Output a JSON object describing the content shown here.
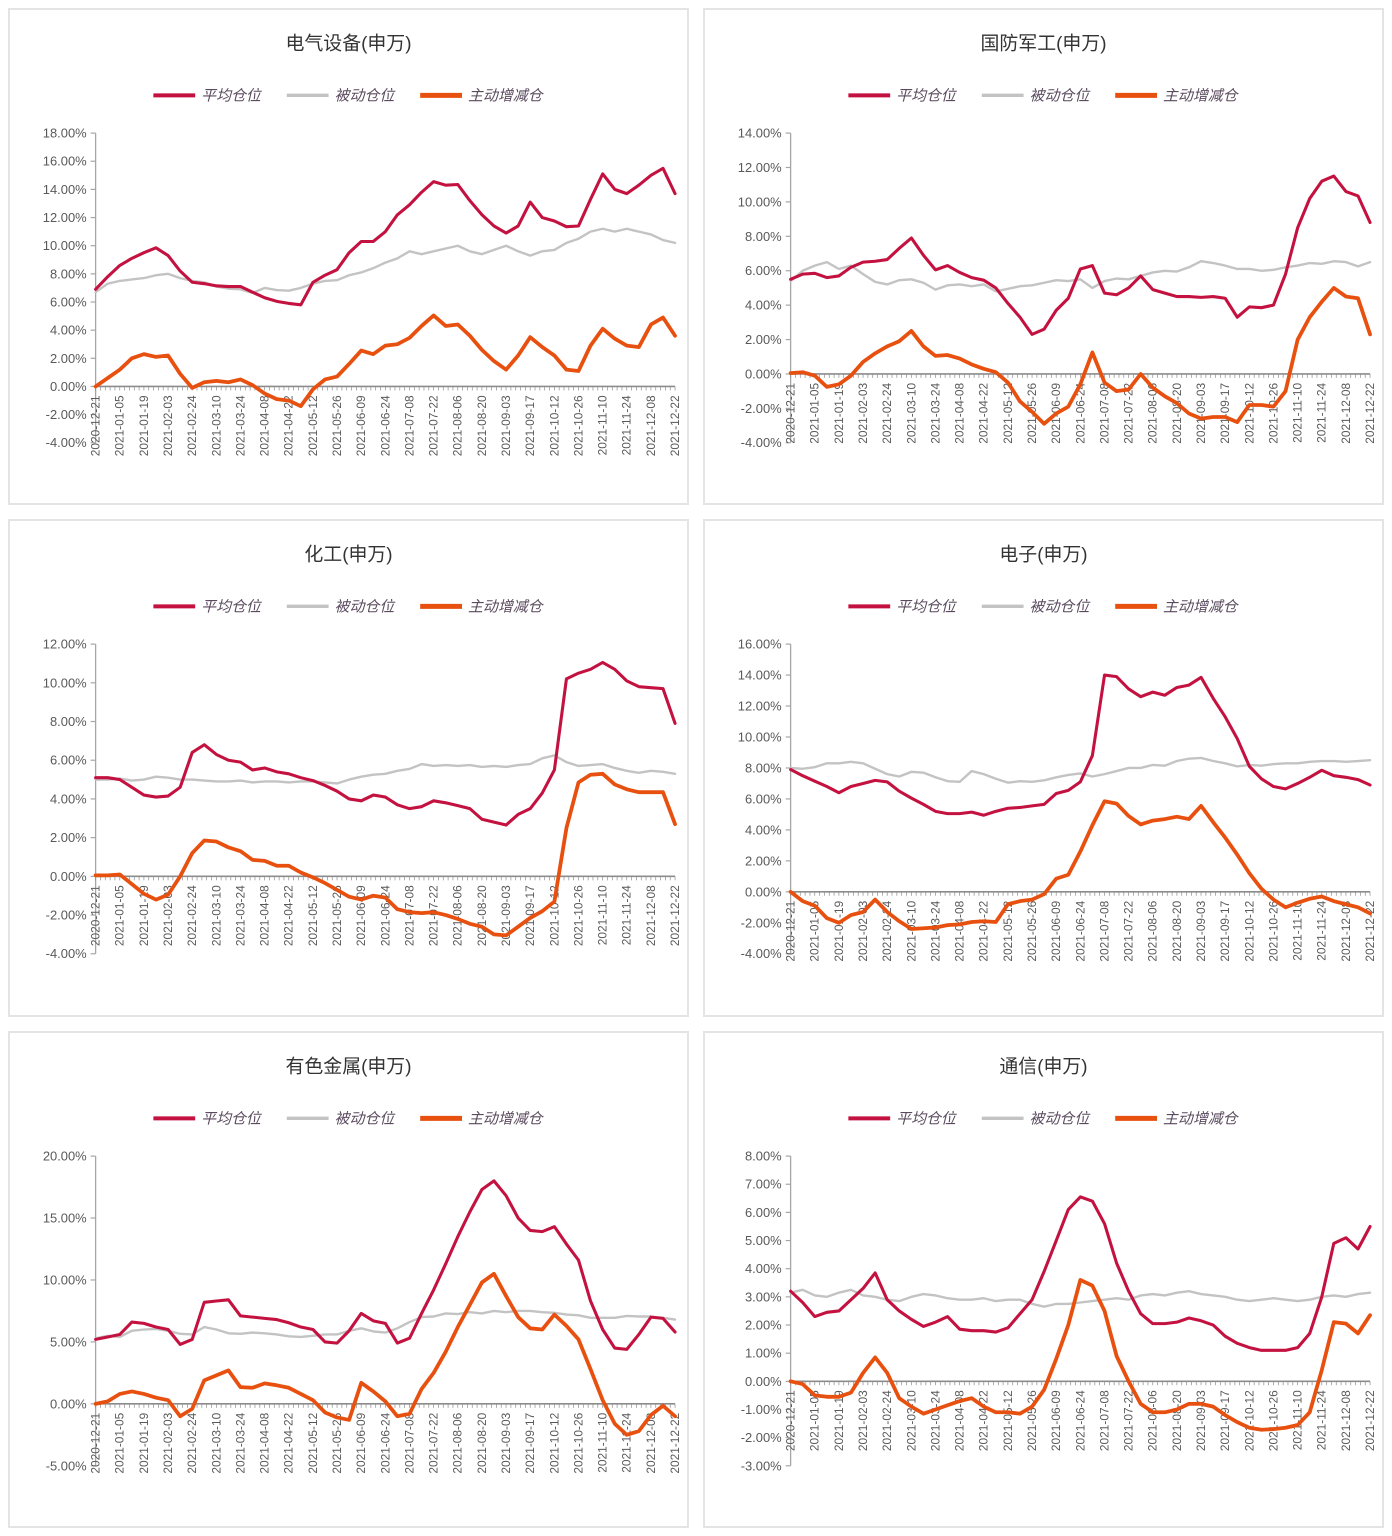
{
  "page": {
    "colors": {
      "avg": "#C41240",
      "passive": "#C3C3C3",
      "active": "#E8500F",
      "axis": "#8C8C8C",
      "grid_axis": "#A6A6A6",
      "tick_text": "#595959",
      "title_text": "#333333",
      "legend_text": "#5A4A5E",
      "panel_border": "#E4E4E4"
    }
  },
  "series_meta": [
    {
      "key": "avg",
      "label": "平均仓位"
    },
    {
      "key": "passive",
      "label": "被动仓位"
    },
    {
      "key": "active",
      "label": "主动增减仓"
    }
  ],
  "x_labels": [
    "2020-12-21",
    "2021-01-05",
    "2021-01-19",
    "2021-02-03",
    "2021-02-24",
    "2021-03-10",
    "2021-03-24",
    "2021-04-08",
    "2021-04-22",
    "2021-05-12",
    "2021-05-26",
    "2021-06-09",
    "2021-06-24",
    "2021-07-08",
    "2021-07-22",
    "2021-08-06",
    "2021-08-20",
    "2021-09-03",
    "2021-09-17",
    "2021-10-12",
    "2021-10-26",
    "2021-11-10",
    "2021-11-24",
    "2021-12-08",
    "2021-12-22"
  ],
  "chart_data": [
    {
      "type": "line",
      "id": "electrical-equipment",
      "title": "电气设备(申万)",
      "ylim": [
        -4,
        18
      ],
      "ystep": 2,
      "y_tick_labels": [
        "18.00%",
        "16.00%",
        "14.00%",
        "12.00%",
        "10.00%",
        "8.00%",
        "6.00%",
        "4.00%",
        "2.00%",
        "0.00%",
        "-2.00%",
        "-4.00%"
      ],
      "series": {
        "avg": [
          6.9,
          7.8,
          8.6,
          9.1,
          9.5,
          9.85,
          9.3,
          8.2,
          7.4,
          7.3,
          7.15,
          7.1,
          7.1,
          6.7,
          6.3,
          6.05,
          5.9,
          5.8,
          7.4,
          7.9,
          8.3,
          9.5,
          10.3,
          10.3,
          11.0,
          12.2,
          12.9,
          13.8,
          14.55,
          14.3,
          14.35,
          13.2,
          12.2,
          11.4,
          10.9,
          11.4,
          13.1,
          12.0,
          11.75,
          11.35,
          11.4,
          13.3,
          15.1,
          14.0,
          13.7,
          14.3,
          15.0,
          15.5,
          13.7
        ],
        "passive": [
          6.7,
          7.3,
          7.5,
          7.6,
          7.7,
          7.9,
          8.0,
          7.7,
          7.5,
          7.4,
          7.1,
          6.95,
          6.9,
          6.65,
          7.0,
          6.85,
          6.8,
          7.0,
          7.3,
          7.5,
          7.55,
          7.9,
          8.1,
          8.4,
          8.8,
          9.1,
          9.6,
          9.4,
          9.6,
          9.8,
          10.0,
          9.6,
          9.4,
          9.7,
          10.0,
          9.6,
          9.3,
          9.6,
          9.7,
          10.2,
          10.5,
          11.0,
          11.2,
          11.0,
          11.2,
          11.0,
          10.8,
          10.4,
          10.2
        ],
        "active": [
          0.0,
          0.6,
          1.2,
          2.0,
          2.3,
          2.1,
          2.2,
          0.9,
          -0.1,
          0.3,
          0.4,
          0.3,
          0.5,
          0.1,
          -0.5,
          -0.9,
          -1.0,
          -1.4,
          -0.2,
          0.5,
          0.7,
          1.6,
          2.55,
          2.3,
          2.9,
          3.0,
          3.45,
          4.3,
          5.05,
          4.3,
          4.4,
          3.6,
          2.6,
          1.8,
          1.2,
          2.2,
          3.5,
          2.8,
          2.2,
          1.2,
          1.1,
          2.9,
          4.1,
          3.4,
          2.9,
          2.8,
          4.4,
          4.9,
          3.6
        ]
      }
    },
    {
      "type": "line",
      "id": "defense-military",
      "title": "国防军工(申万)",
      "ylim": [
        -4,
        14
      ],
      "ystep": 2,
      "y_tick_labels": [
        "14.00%",
        "12.00%",
        "10.00%",
        "8.00%",
        "6.00%",
        "4.00%",
        "2.00%",
        "0.00%",
        "-2.00%",
        "-4.00%"
      ],
      "series": {
        "avg": [
          5.5,
          5.8,
          5.85,
          5.6,
          5.7,
          6.2,
          6.5,
          6.55,
          6.65,
          7.3,
          7.9,
          6.9,
          6.05,
          6.3,
          5.9,
          5.6,
          5.45,
          5.0,
          4.1,
          3.3,
          2.3,
          2.6,
          3.7,
          4.4,
          6.1,
          6.3,
          4.7,
          4.6,
          5.0,
          5.7,
          4.9,
          4.7,
          4.5,
          4.5,
          4.45,
          4.5,
          4.4,
          3.3,
          3.9,
          3.85,
          4.0,
          5.8,
          8.5,
          10.2,
          11.2,
          11.5,
          10.6,
          10.35,
          8.8
        ],
        "passive": [
          5.4,
          6.0,
          6.3,
          6.5,
          6.1,
          6.3,
          5.8,
          5.35,
          5.2,
          5.45,
          5.5,
          5.3,
          4.9,
          5.15,
          5.2,
          5.1,
          5.2,
          4.8,
          4.95,
          5.1,
          5.15,
          5.3,
          5.45,
          5.4,
          5.5,
          5.0,
          5.4,
          5.55,
          5.5,
          5.7,
          5.9,
          6.0,
          5.95,
          6.2,
          6.55,
          6.45,
          6.3,
          6.1,
          6.1,
          6.0,
          6.05,
          6.2,
          6.3,
          6.45,
          6.4,
          6.55,
          6.5,
          6.25,
          6.5
        ],
        "active": [
          0.05,
          0.1,
          -0.1,
          -0.75,
          -0.6,
          -0.1,
          0.7,
          1.2,
          1.6,
          1.9,
          2.5,
          1.6,
          1.05,
          1.1,
          0.9,
          0.55,
          0.3,
          0.1,
          -0.5,
          -1.6,
          -2.2,
          -2.9,
          -2.3,
          -1.9,
          -0.6,
          1.25,
          -0.5,
          -1.0,
          -0.9,
          0.0,
          -0.8,
          -1.3,
          -1.7,
          -2.3,
          -2.6,
          -2.5,
          -2.5,
          -2.8,
          -1.8,
          -1.8,
          -1.9,
          -1.0,
          2.0,
          3.3,
          4.2,
          5.0,
          4.5,
          4.4,
          2.3
        ]
      }
    },
    {
      "type": "line",
      "id": "chemicals",
      "title": "化工(申万)",
      "ylim": [
        -4,
        12
      ],
      "ystep": 2,
      "y_tick_labels": [
        "12.00%",
        "10.00%",
        "8.00%",
        "6.00%",
        "4.00%",
        "2.00%",
        "0.00%",
        "-2.00%",
        "-4.00%"
      ],
      "series": {
        "avg": [
          5.1,
          5.1,
          5.0,
          4.6,
          4.2,
          4.1,
          4.15,
          4.6,
          6.4,
          6.8,
          6.3,
          6.0,
          5.9,
          5.5,
          5.6,
          5.4,
          5.3,
          5.1,
          4.95,
          4.7,
          4.4,
          4.0,
          3.9,
          4.2,
          4.1,
          3.7,
          3.5,
          3.6,
          3.9,
          3.8,
          3.65,
          3.5,
          2.95,
          2.8,
          2.65,
          3.2,
          3.5,
          4.3,
          5.5,
          10.2,
          10.5,
          10.7,
          11.05,
          10.7,
          10.1,
          9.8,
          9.75,
          9.7,
          7.9
        ],
        "passive": [
          5.0,
          5.0,
          5.05,
          4.95,
          5.0,
          5.15,
          5.1,
          5.0,
          5.0,
          4.95,
          4.9,
          4.9,
          4.95,
          4.85,
          4.9,
          4.9,
          4.85,
          4.9,
          4.9,
          4.85,
          4.8,
          5.0,
          5.15,
          5.25,
          5.3,
          5.45,
          5.55,
          5.8,
          5.7,
          5.75,
          5.7,
          5.75,
          5.65,
          5.7,
          5.65,
          5.75,
          5.8,
          6.1,
          6.25,
          5.9,
          5.7,
          5.75,
          5.8,
          5.6,
          5.45,
          5.35,
          5.45,
          5.4,
          5.3
        ],
        "active": [
          0.05,
          0.05,
          0.1,
          -0.4,
          -0.9,
          -1.2,
          -0.95,
          0.0,
          1.2,
          1.85,
          1.8,
          1.5,
          1.3,
          0.85,
          0.8,
          0.55,
          0.55,
          0.2,
          -0.05,
          -0.35,
          -0.7,
          -1.05,
          -1.2,
          -1.0,
          -1.1,
          -1.7,
          -1.85,
          -1.9,
          -1.85,
          -2.0,
          -2.2,
          -2.45,
          -2.6,
          -3.0,
          -3.05,
          -2.6,
          -2.15,
          -1.8,
          -1.3,
          2.5,
          4.85,
          5.25,
          5.3,
          4.75,
          4.5,
          4.35,
          4.35,
          4.35,
          2.7
        ]
      }
    },
    {
      "type": "line",
      "id": "electronics",
      "title": "电子(申万)",
      "ylim": [
        -4,
        16
      ],
      "ystep": 2,
      "y_tick_labels": [
        "16.00%",
        "14.00%",
        "12.00%",
        "10.00%",
        "8.00%",
        "6.00%",
        "4.00%",
        "2.00%",
        "0.00%",
        "-2.00%",
        "-4.00%"
      ],
      "series": {
        "avg": [
          7.9,
          7.5,
          7.15,
          6.8,
          6.4,
          6.8,
          7.0,
          7.2,
          7.1,
          6.5,
          6.05,
          5.65,
          5.2,
          5.05,
          5.05,
          5.15,
          4.95,
          5.2,
          5.4,
          5.45,
          5.55,
          5.65,
          6.35,
          6.55,
          7.1,
          8.8,
          14.0,
          13.9,
          13.1,
          12.6,
          12.9,
          12.7,
          13.2,
          13.35,
          13.85,
          12.5,
          11.3,
          9.9,
          8.1,
          7.3,
          6.8,
          6.65,
          7.0,
          7.4,
          7.85,
          7.5,
          7.4,
          7.25,
          6.9
        ],
        "passive": [
          8.0,
          7.95,
          8.05,
          8.3,
          8.3,
          8.4,
          8.3,
          7.95,
          7.6,
          7.45,
          7.75,
          7.7,
          7.4,
          7.15,
          7.1,
          7.8,
          7.6,
          7.3,
          7.05,
          7.15,
          7.1,
          7.2,
          7.4,
          7.55,
          7.65,
          7.45,
          7.6,
          7.8,
          8.0,
          8.0,
          8.2,
          8.15,
          8.45,
          8.6,
          8.65,
          8.45,
          8.3,
          8.1,
          8.2,
          8.15,
          8.25,
          8.3,
          8.3,
          8.4,
          8.45,
          8.45,
          8.4,
          8.45,
          8.5
        ],
        "active": [
          0.0,
          -0.6,
          -0.9,
          -1.7,
          -2.0,
          -1.5,
          -1.3,
          -0.5,
          -1.3,
          -1.9,
          -2.4,
          -2.35,
          -2.3,
          -2.15,
          -2.1,
          -1.95,
          -1.9,
          -1.95,
          -0.8,
          -0.6,
          -0.5,
          -0.15,
          0.85,
          1.1,
          2.6,
          4.3,
          5.85,
          5.7,
          4.9,
          4.35,
          4.6,
          4.7,
          4.85,
          4.7,
          5.55,
          4.5,
          3.5,
          2.4,
          1.2,
          0.2,
          -0.5,
          -1.0,
          -0.7,
          -0.45,
          -0.3,
          -0.6,
          -0.8,
          -1.0,
          -1.4
        ]
      }
    },
    {
      "type": "line",
      "id": "nonferrous-metals",
      "title": "有色金属(申万)",
      "ylim": [
        -5,
        20
      ],
      "ystep": 5,
      "y_tick_labels": [
        "20.00%",
        "15.00%",
        "10.00%",
        "5.00%",
        "0.00%",
        "-5.00%"
      ],
      "series": {
        "avg": [
          5.2,
          5.4,
          5.6,
          6.6,
          6.5,
          6.2,
          6.0,
          4.8,
          5.2,
          8.2,
          8.3,
          8.4,
          7.1,
          7.0,
          6.9,
          6.8,
          6.55,
          6.2,
          6.0,
          5.0,
          4.9,
          5.9,
          7.3,
          6.7,
          6.5,
          4.9,
          5.3,
          7.3,
          9.2,
          11.3,
          13.5,
          15.5,
          17.3,
          18.0,
          16.8,
          15.0,
          14.0,
          13.9,
          14.3,
          12.9,
          11.6,
          8.3,
          6.0,
          4.5,
          4.4,
          5.6,
          7.0,
          6.9,
          5.8
        ],
        "passive": [
          5.3,
          5.5,
          5.4,
          5.9,
          6.0,
          6.05,
          5.9,
          5.65,
          5.6,
          6.2,
          6.0,
          5.7,
          5.65,
          5.75,
          5.7,
          5.6,
          5.45,
          5.4,
          5.5,
          5.6,
          5.6,
          5.9,
          6.1,
          5.85,
          5.75,
          6.1,
          6.6,
          7.0,
          7.05,
          7.3,
          7.25,
          7.4,
          7.3,
          7.5,
          7.4,
          7.5,
          7.5,
          7.4,
          7.35,
          7.2,
          7.15,
          6.95,
          6.95,
          6.95,
          7.1,
          7.05,
          7.05,
          6.95,
          6.8
        ],
        "active": [
          0.0,
          0.2,
          0.8,
          1.0,
          0.8,
          0.5,
          0.3,
          -1.0,
          -0.4,
          1.9,
          2.3,
          2.7,
          1.35,
          1.3,
          1.65,
          1.5,
          1.3,
          0.8,
          0.3,
          -0.7,
          -1.1,
          -1.3,
          1.7,
          1.0,
          0.2,
          -1.0,
          -0.8,
          1.2,
          2.5,
          4.2,
          6.2,
          8.0,
          9.8,
          10.5,
          8.7,
          7.0,
          6.1,
          6.0,
          7.2,
          6.3,
          5.2,
          2.8,
          0.3,
          -1.6,
          -2.5,
          -2.2,
          -0.9,
          -0.15,
          -1.0
        ]
      }
    },
    {
      "type": "line",
      "id": "telecom",
      "title": "通信(申万)",
      "ylim": [
        -3,
        8
      ],
      "ystep": 1,
      "y_tick_labels": [
        "8.00%",
        "7.00%",
        "6.00%",
        "5.00%",
        "4.00%",
        "3.00%",
        "2.00%",
        "1.00%",
        "0.00%",
        "-1.00%",
        "-2.00%",
        "-3.00%"
      ],
      "series": {
        "avg": [
          3.2,
          2.8,
          2.3,
          2.45,
          2.5,
          2.9,
          3.3,
          3.85,
          2.9,
          2.5,
          2.2,
          1.95,
          2.1,
          2.3,
          1.85,
          1.8,
          1.8,
          1.75,
          1.9,
          2.4,
          2.9,
          3.9,
          5.0,
          6.1,
          6.55,
          6.4,
          5.6,
          4.2,
          3.2,
          2.4,
          2.05,
          2.05,
          2.1,
          2.25,
          2.15,
          2.0,
          1.6,
          1.35,
          1.2,
          1.1,
          1.1,
          1.1,
          1.2,
          1.7,
          3.0,
          4.9,
          5.1,
          4.7,
          5.5
        ],
        "passive": [
          3.15,
          3.25,
          3.05,
          3.0,
          3.15,
          3.25,
          3.05,
          3.0,
          2.9,
          2.85,
          3.0,
          3.1,
          3.05,
          2.95,
          2.9,
          2.9,
          2.95,
          2.85,
          2.9,
          2.9,
          2.75,
          2.65,
          2.75,
          2.75,
          2.8,
          2.85,
          2.9,
          2.95,
          2.9,
          3.05,
          3.1,
          3.05,
          3.15,
          3.2,
          3.1,
          3.05,
          3.0,
          2.9,
          2.85,
          2.9,
          2.95,
          2.9,
          2.85,
          2.9,
          3.0,
          3.05,
          3.0,
          3.1,
          3.15
        ],
        "active": [
          0.0,
          -0.1,
          -0.5,
          -0.55,
          -0.55,
          -0.4,
          0.3,
          0.85,
          0.3,
          -0.6,
          -0.9,
          -1.15,
          -1.0,
          -0.85,
          -0.7,
          -0.6,
          -0.9,
          -1.1,
          -1.1,
          -1.15,
          -0.9,
          -0.3,
          0.8,
          2.0,
          3.6,
          3.4,
          2.5,
          0.9,
          0.0,
          -0.8,
          -1.1,
          -1.1,
          -1.0,
          -0.8,
          -0.8,
          -0.9,
          -1.2,
          -1.45,
          -1.65,
          -1.72,
          -1.7,
          -1.65,
          -1.55,
          -1.1,
          0.4,
          2.1,
          2.05,
          1.7,
          2.35
        ]
      }
    }
  ]
}
